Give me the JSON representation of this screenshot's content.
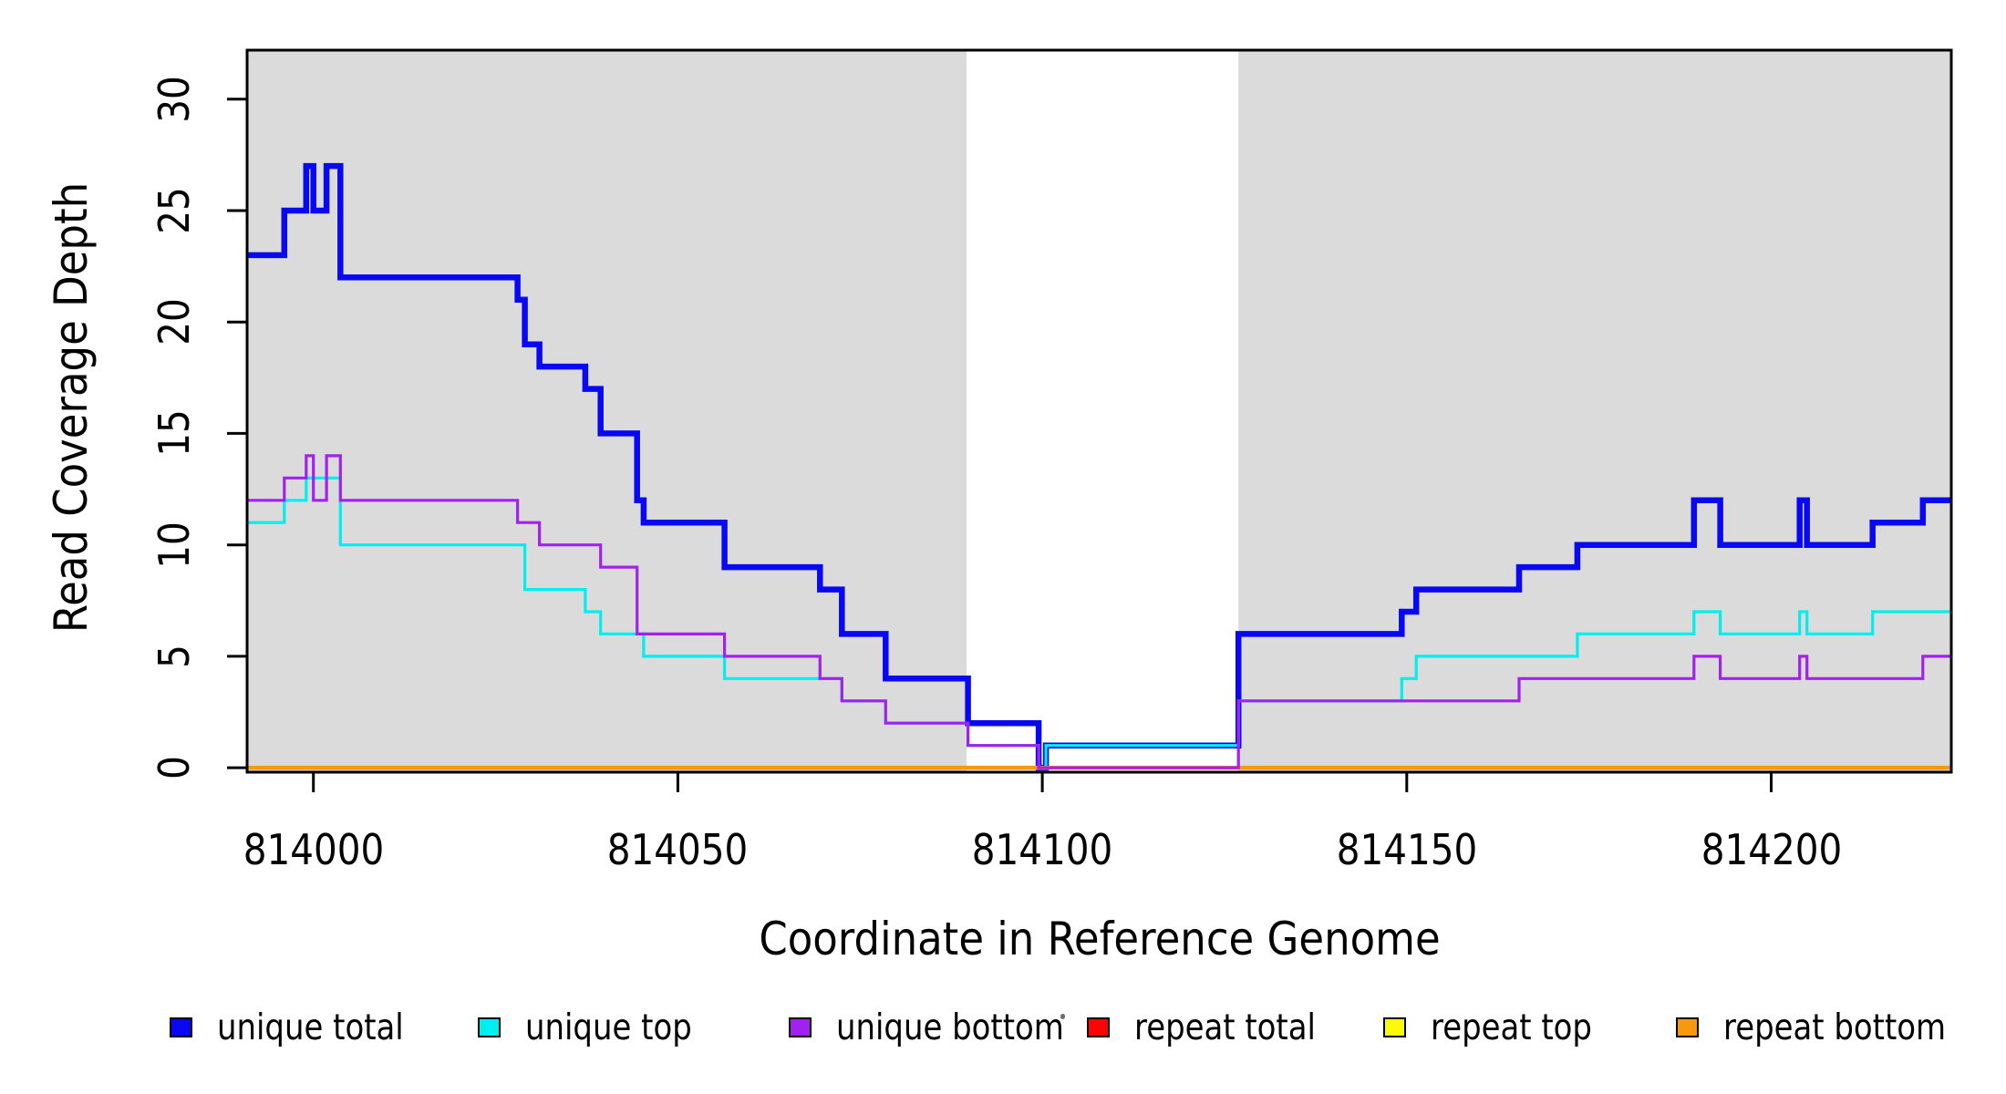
{
  "figure": {
    "ylabel": "Read Coverage Depth",
    "xlabel": "Coordinate in Reference Genome"
  },
  "axes": {
    "x": {
      "ticks": [
        "814000",
        "814050",
        "814100",
        "814150",
        "814200"
      ]
    },
    "y": {
      "ticks": [
        "0",
        "5",
        "10",
        "15",
        "20",
        "25",
        "30"
      ]
    }
  },
  "legend": [
    {
      "id": "unique-total",
      "label": "unique total",
      "color": "#0808F5"
    },
    {
      "id": "unique-top",
      "label": "unique top",
      "color": "#00EEEE"
    },
    {
      "id": "unique-bottom",
      "label": "unique bottom",
      "color": "#A321EE"
    },
    {
      "id": "repeat-total",
      "label": "repeat total",
      "color": "#FA0404"
    },
    {
      "id": "repeat-top",
      "label": "repeat top",
      "color": "#FBFB09"
    },
    {
      "id": "repeat-bottom",
      "label": "repeat bottom",
      "color": "#F8990D"
    }
  ],
  "colors": {
    "background": "#FFFFFF",
    "panel_shade": "#DBDBDB",
    "axis": "#000000"
  },
  "chart_data": {
    "type": "line",
    "step": true,
    "title": "",
    "xlabel": "Coordinate in Reference Genome",
    "ylabel": "Read Coverage Depth",
    "xlim": [
      813990.9,
      814224.7
    ],
    "ylim": [
      -0.2,
      32.2
    ],
    "x_ticks": [
      814000,
      814050,
      814100,
      814150,
      814200
    ],
    "y_ticks": [
      0,
      5,
      10,
      15,
      20,
      25,
      30
    ],
    "grid": false,
    "legend_position": "bottom",
    "shaded_regions": [
      [
        813990.9,
        814089.6
      ],
      [
        814126.9,
        814224.7
      ]
    ],
    "series": [
      {
        "id": "unique-total",
        "name": "unique total",
        "color": "#0808F5",
        "width": 6.5,
        "points": [
          [
            813990.9,
            23
          ],
          [
            813996,
            25
          ],
          [
            813999,
            27
          ],
          [
            814000,
            25
          ],
          [
            814001.8,
            27
          ],
          [
            814003.7,
            22
          ],
          [
            814028,
            21
          ],
          [
            814029,
            19
          ],
          [
            814031,
            18
          ],
          [
            814037.3,
            17
          ],
          [
            814039.4,
            15
          ],
          [
            814044.4,
            12
          ],
          [
            814045.3,
            11
          ],
          [
            814056.4,
            9
          ],
          [
            814069.5,
            8
          ],
          [
            814072.5,
            6
          ],
          [
            814078.5,
            4
          ],
          [
            814089.8,
            2
          ],
          [
            814099.5,
            0
          ],
          [
            814100.5,
            1
          ],
          [
            814126.9,
            6
          ],
          [
            814149.3,
            7
          ],
          [
            814151.3,
            8
          ],
          [
            814165.4,
            9
          ],
          [
            814173.4,
            10
          ],
          [
            814189.4,
            12
          ],
          [
            814193,
            10
          ],
          [
            814203.9,
            12
          ],
          [
            814204.9,
            10
          ],
          [
            814213.9,
            11
          ],
          [
            814220.8,
            12
          ],
          [
            814224.7,
            12
          ]
        ]
      },
      {
        "id": "unique-top",
        "name": "unique top",
        "color": "#00EEEE",
        "width": 3.2,
        "points": [
          [
            813990.9,
            11
          ],
          [
            813996,
            12
          ],
          [
            813999,
            13
          ],
          [
            814003.7,
            10
          ],
          [
            814029,
            8
          ],
          [
            814037.3,
            7
          ],
          [
            814039.4,
            6
          ],
          [
            814045.3,
            5
          ],
          [
            814056.4,
            4
          ],
          [
            814072.5,
            3
          ],
          [
            814078.5,
            2
          ],
          [
            814089.8,
            1
          ],
          [
            814099.5,
            0
          ],
          [
            814100.5,
            1
          ],
          [
            814126.9,
            3
          ],
          [
            814149.3,
            4
          ],
          [
            814151.3,
            5
          ],
          [
            814173.4,
            6
          ],
          [
            814189.4,
            7
          ],
          [
            814193,
            6
          ],
          [
            814203.9,
            7
          ],
          [
            814204.9,
            6
          ],
          [
            814213.9,
            7
          ],
          [
            814224.7,
            7
          ]
        ]
      },
      {
        "id": "repeat-total",
        "name": "repeat total",
        "color": "#FA0404",
        "width": 3,
        "points": [
          [
            813990.9,
            0
          ],
          [
            814224.7,
            0
          ]
        ]
      },
      {
        "id": "repeat-top",
        "name": "repeat top",
        "color": "#FBFB09",
        "width": 3,
        "points": [
          [
            813990.9,
            0
          ],
          [
            814224.7,
            0
          ]
        ]
      },
      {
        "id": "repeat-bottom",
        "name": "repeat bottom",
        "color": "#F8990D",
        "width": 4.5,
        "points": [
          [
            813990.9,
            0
          ],
          [
            814224.7,
            0
          ]
        ]
      },
      {
        "id": "unique-bottom",
        "name": "unique bottom",
        "color": "#A321EE",
        "width": 3.2,
        "points": [
          [
            813990.9,
            12
          ],
          [
            813996,
            13
          ],
          [
            813999,
            14
          ],
          [
            814000,
            12
          ],
          [
            814001.8,
            14
          ],
          [
            814003.7,
            12
          ],
          [
            814028,
            11
          ],
          [
            814031,
            10
          ],
          [
            814039.4,
            9
          ],
          [
            814044.4,
            6
          ],
          [
            814056.4,
            5
          ],
          [
            814069.5,
            4
          ],
          [
            814072.5,
            3
          ],
          [
            814078.5,
            2
          ],
          [
            814089.8,
            1
          ],
          [
            814099.5,
            0
          ],
          [
            814126.9,
            3
          ],
          [
            814165.4,
            4
          ],
          [
            814189.4,
            5
          ],
          [
            814193,
            4
          ],
          [
            814203.9,
            5
          ],
          [
            814204.9,
            4
          ],
          [
            814220.8,
            5
          ],
          [
            814224.7,
            5
          ]
        ]
      }
    ]
  }
}
